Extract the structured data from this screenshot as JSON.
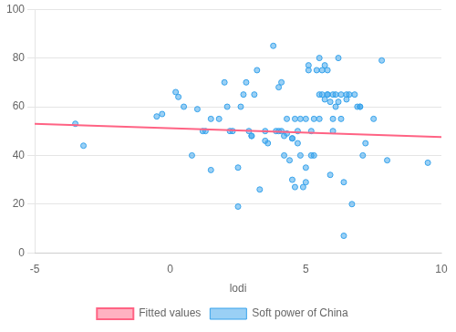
{
  "chart_data": {
    "type": "scatter",
    "xlabel": "lodi",
    "series": [
      {
        "name": "Soft power of China",
        "type": "scatter",
        "x": [
          -3.5,
          -3.2,
          -0.5,
          -0.3,
          0.2,
          0.3,
          0.5,
          0.8,
          1.0,
          1.2,
          1.3,
          1.5,
          1.5,
          1.8,
          2.0,
          2.1,
          2.2,
          2.3,
          2.5,
          2.5,
          2.6,
          2.7,
          2.8,
          2.9,
          3.0,
          3.0,
          3.1,
          3.2,
          3.3,
          3.5,
          3.5,
          3.6,
          3.8,
          3.9,
          4.0,
          4.0,
          4.1,
          4.1,
          4.2,
          4.2,
          4.3,
          4.3,
          4.4,
          4.5,
          4.5,
          4.5,
          4.6,
          4.6,
          4.7,
          4.7,
          4.8,
          4.8,
          4.9,
          5.0,
          5.0,
          5.0,
          5.1,
          5.1,
          5.2,
          5.2,
          5.3,
          5.3,
          5.4,
          5.5,
          5.5,
          5.5,
          5.6,
          5.6,
          5.7,
          5.7,
          5.8,
          5.8,
          5.8,
          5.9,
          5.9,
          6.0,
          6.0,
          6.0,
          6.1,
          6.1,
          6.2,
          6.2,
          6.3,
          6.3,
          6.4,
          6.4,
          6.5,
          6.5,
          6.6,
          6.7,
          6.8,
          6.9,
          7.0,
          7.0,
          7.1,
          7.2,
          7.5,
          7.8,
          8.0,
          9.5
        ],
        "values": [
          53,
          44,
          56,
          57,
          66,
          64,
          60,
          40,
          59,
          50,
          50,
          34,
          55,
          55,
          70,
          60,
          50,
          50,
          19,
          35,
          60,
          65,
          70,
          50,
          48,
          48,
          65,
          75,
          26,
          46,
          50,
          45,
          85,
          50,
          68,
          50,
          70,
          50,
          48,
          40,
          55,
          49,
          38,
          47,
          47,
          30,
          55,
          27,
          50,
          45,
          55,
          40,
          27,
          55,
          29,
          35,
          77,
          75,
          50,
          40,
          55,
          40,
          75,
          80,
          65,
          55,
          75,
          65,
          77,
          63,
          65,
          65,
          75,
          62,
          32,
          65,
          50,
          55,
          65,
          60,
          80,
          62,
          65,
          55,
          7,
          29,
          63,
          65,
          65,
          20,
          65,
          60,
          60,
          60,
          40,
          45,
          55,
          79,
          38,
          37
        ]
      },
      {
        "name": "Fitted values",
        "type": "line",
        "x": [
          -5,
          10
        ],
        "values": [
          53.0,
          47.5
        ]
      }
    ],
    "xlim": [
      -5,
      10
    ],
    "ylim": [
      0,
      100
    ],
    "xticks": [
      -5,
      0,
      5,
      10
    ],
    "yticks": [
      0,
      20,
      40,
      60,
      80,
      100
    ],
    "grid": "y",
    "legend": "bottom"
  }
}
